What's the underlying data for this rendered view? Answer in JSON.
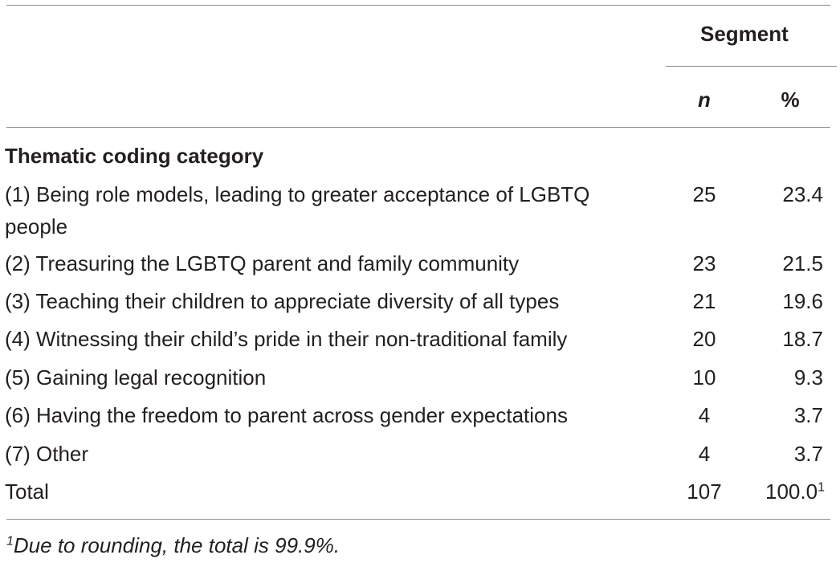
{
  "header": {
    "group_label": "Segment",
    "col_n": "n",
    "col_pct": "%"
  },
  "section_title": "Thematic coding category",
  "rows": [
    {
      "label": "(1) Being role models, leading to greater acceptance of LGBTQ people",
      "n": "25",
      "pct": "23.4"
    },
    {
      "label": "(2) Treasuring the LGBTQ parent and family community",
      "n": "23",
      "pct": "21.5"
    },
    {
      "label": "(3) Teaching their children to appreciate diversity of all types",
      "n": "21",
      "pct": "19.6"
    },
    {
      "label": "(4) Witnessing their child’s pride in their non-traditional family",
      "n": "20",
      "pct": "18.7"
    },
    {
      "label": "(5) Gaining legal recognition",
      "n": "10",
      "pct": "9.3"
    },
    {
      "label": "(6) Having the freedom to parent across gender expectations",
      "n": "4",
      "pct": "3.7"
    },
    {
      "label": "(7) Other",
      "n": "4",
      "pct": "3.7"
    }
  ],
  "total": {
    "label": "Total",
    "n": "107",
    "pct": "100.0",
    "pct_marker": "1"
  },
  "footnote": {
    "marker": "1",
    "text": "Due to rounding, the total is 99.9%."
  }
}
